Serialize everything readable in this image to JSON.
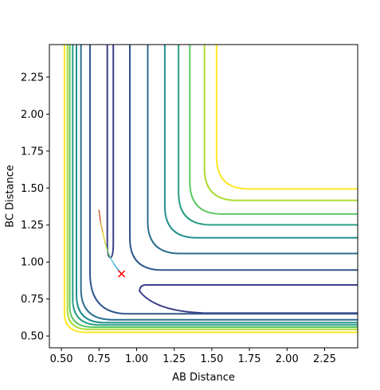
{
  "chart_data": {
    "type": "contour",
    "title": "",
    "xlabel": "AB Distance",
    "ylabel": "BC Distance",
    "xlim": [
      0.42,
      2.47
    ],
    "ylim": [
      0.42,
      2.47
    ],
    "xticks": [
      0.5,
      0.75,
      1.0,
      1.25,
      1.5,
      1.75,
      2.0,
      2.25
    ],
    "yticks": [
      0.5,
      0.75,
      1.0,
      1.25,
      1.5,
      1.75,
      2.0,
      2.25
    ],
    "xtick_labels": [
      "0.50",
      "0.75",
      "1.00",
      "1.25",
      "1.50",
      "1.75",
      "2.00",
      "2.25"
    ],
    "ytick_labels": [
      "0.50",
      "0.75",
      "1.00",
      "1.25",
      "1.50",
      "1.75",
      "2.00",
      "2.25"
    ],
    "grid": false,
    "contours": [
      {
        "color": "#3b3f8a",
        "x_asymptote": 0.815,
        "y_asymptote": 0.84,
        "corner": [
          0.83,
          0.84
        ],
        "saddle_split": true
      },
      {
        "color": "#31578c",
        "x_asymptote": 0.69,
        "y_asymptote": 0.65,
        "corner": [
          0.78,
          0.75
        ]
      },
      {
        "color": "#2c6e8e",
        "x_asymptote": 0.63,
        "y_asymptote": 0.61,
        "corner": [
          0.7,
          0.68
        ]
      },
      {
        "color": "#21908d",
        "x_asymptote": 0.6,
        "y_asymptote": 0.59,
        "corner": [
          0.66,
          0.65
        ]
      },
      {
        "color": "#2a9f85",
        "x_asymptote": 0.575,
        "y_asymptote": 0.575,
        "corner": [
          0.63,
          0.63
        ]
      },
      {
        "color": "#5cc863",
        "x_asymptote": 0.555,
        "y_asymptote": 0.56,
        "corner": [
          0.6,
          0.6
        ]
      },
      {
        "color": "#aadc32",
        "x_asymptote": 0.54,
        "y_asymptote": 0.545,
        "corner": [
          0.58,
          0.58
        ]
      },
      {
        "color": "#fde725",
        "x_asymptote": 0.52,
        "y_asymptote": 0.525,
        "corner": [
          0.56,
          0.56
        ]
      }
    ],
    "trajectory": {
      "x": [
        0.75,
        0.76,
        0.775,
        0.79,
        0.805,
        0.825,
        0.85,
        0.875,
        0.9
      ],
      "y": [
        1.35,
        1.27,
        1.2,
        1.13,
        1.08,
        1.03,
        0.985,
        0.95,
        0.92
      ],
      "colors": [
        "#d95f3b",
        "#e0a23a",
        "#e6d23e",
        "#b4e04a",
        "#7ad67a",
        "#5cc8c8",
        "#45b0e0",
        "#3a9ad8"
      ]
    },
    "marker": {
      "x": 0.9,
      "y": 0.92,
      "symbol": "x",
      "color": "#ff0000"
    }
  }
}
